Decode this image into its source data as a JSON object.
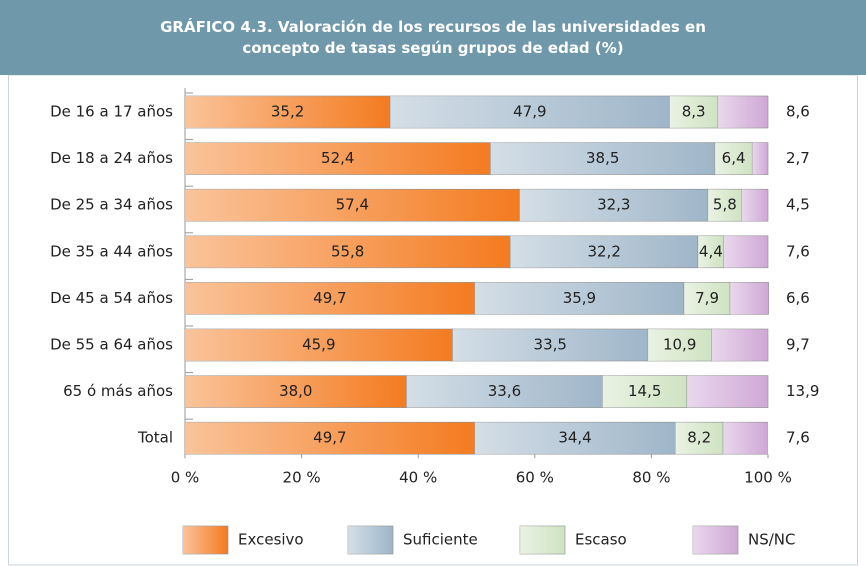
{
  "chart_data": {
    "type": "stacked-bar-horizontal",
    "title": "GRÁFICO 4.3. Valoración de los recursos de las universidades en concepto de tasas según grupos de edad (%)",
    "categories": [
      "De 16 a 17 años",
      "De 18 a 24 años",
      "De 25 a 34 años",
      "De 35 a 44 años",
      "De 45 a 54 años",
      "De 55 a 64 años",
      "65 ó más años",
      "Total"
    ],
    "series": [
      {
        "name": "Excesivo",
        "color": "#f47b20",
        "values": [
          35.2,
          52.4,
          57.4,
          55.8,
          49.7,
          45.9,
          38.0,
          49.7
        ],
        "value_labels": [
          "35,2",
          "52,4",
          "57,4",
          "55,8",
          "49,7",
          "45,9",
          "38,0",
          "49,7"
        ]
      },
      {
        "name": "Suficiente",
        "color": "#9fb6c9",
        "values": [
          47.9,
          38.5,
          32.3,
          32.2,
          35.9,
          33.5,
          33.6,
          34.4
        ],
        "value_labels": [
          "47,9",
          "38,5",
          "32,3",
          "32,2",
          "35,9",
          "33,5",
          "33,6",
          "34,4"
        ]
      },
      {
        "name": "Escaso",
        "color": "#cfe3c2",
        "values": [
          8.3,
          6.4,
          5.8,
          4.4,
          7.9,
          10.9,
          14.5,
          8.2
        ],
        "value_labels": [
          "8,3",
          "6,4",
          "5,8",
          "4,4",
          "7,9",
          "10,9",
          "14,5",
          "8,2"
        ]
      },
      {
        "name": "NS/NC",
        "color": "#cfa8d6",
        "values": [
          8.6,
          2.7,
          4.5,
          7.6,
          6.6,
          9.7,
          13.9,
          7.6
        ],
        "value_labels": [
          "8,6",
          "2,7",
          "4,5",
          "7,6",
          "6,6",
          "9,7",
          "13,9",
          "7,6"
        ]
      }
    ],
    "xlim": [
      0,
      100
    ],
    "xticks": [
      {
        "value": 0,
        "label": "0 %"
      },
      {
        "value": 20,
        "label": "20 %"
      },
      {
        "value": 40,
        "label": "40 %"
      },
      {
        "value": 60,
        "label": "60 %"
      },
      {
        "value": 80,
        "label": "80 %"
      },
      {
        "value": 100,
        "label": "100 %"
      }
    ]
  }
}
